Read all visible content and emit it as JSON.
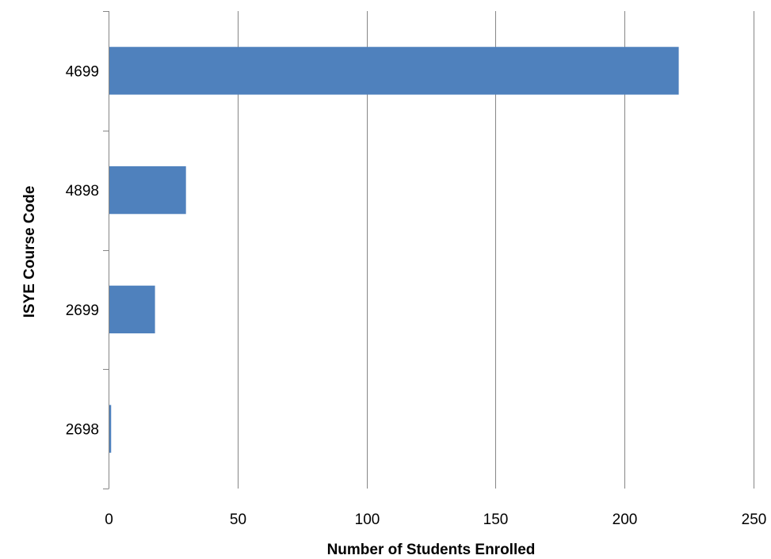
{
  "chart_data": {
    "type": "bar",
    "orientation": "horizontal",
    "title": "",
    "xlabel": "Number of Students Enrolled",
    "ylabel": "ISYE Course Code",
    "categories": [
      "4699",
      "4898",
      "2699",
      "2698"
    ],
    "values": [
      221,
      30,
      18,
      1
    ],
    "xlim": [
      0,
      250
    ],
    "xticks": [
      0,
      50,
      100,
      150,
      200,
      250
    ],
    "grid": "vertical major gridlines",
    "legend": "none",
    "bar_color": "#4f81bd",
    "gridline_color": "#868686"
  }
}
